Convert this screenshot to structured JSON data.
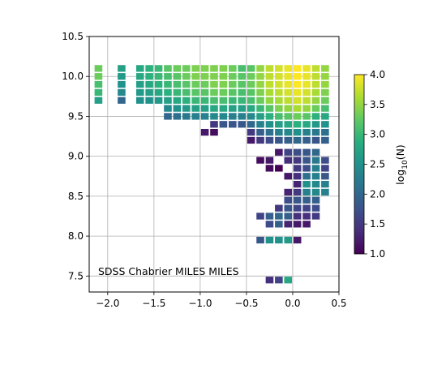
{
  "chart_data": {
    "type": "heatmap",
    "annotation": "SDSS Chabrier MILES MILES",
    "xlim": [
      -2.2,
      0.5
    ],
    "ylim": [
      7.3,
      10.5
    ],
    "xticks": [
      -2.0,
      -1.5,
      -1.0,
      -0.5,
      0.0,
      0.5
    ],
    "xtick_labels": [
      "−2.0",
      "−1.5",
      "−1.0",
      "−0.5",
      "0.0",
      "0.5"
    ],
    "yticks": [
      7.5,
      8.0,
      8.5,
      9.0,
      9.5,
      10.0,
      10.5
    ],
    "ytick_labels": [
      "7.5",
      "8.0",
      "8.5",
      "9.0",
      "9.5",
      "10.0",
      "10.5"
    ],
    "grid": true,
    "cell_width": 0.1,
    "cell_height": 0.1,
    "colorbar": {
      "label_main": "log",
      "label_sub": "10",
      "label_rest": "(N)",
      "range": [
        1.0,
        4.0
      ],
      "ticks": [
        "1.0",
        "1.5",
        "2.0",
        "2.5",
        "3.0",
        "3.5",
        "4.0"
      ],
      "colormap": "viridis"
    },
    "cells": [
      [
        -2.1,
        10.1,
        3.3
      ],
      [
        -2.1,
        10.0,
        3.3
      ],
      [
        -2.1,
        9.9,
        3.1
      ],
      [
        -2.1,
        9.8,
        3.0
      ],
      [
        -2.1,
        9.7,
        2.7
      ],
      [
        -1.85,
        10.1,
        2.7
      ],
      [
        -1.85,
        10.0,
        2.6
      ],
      [
        -1.85,
        9.9,
        2.5
      ],
      [
        -1.85,
        9.8,
        2.4
      ],
      [
        -1.85,
        9.7,
        2.0
      ],
      [
        -1.65,
        10.1,
        2.8
      ],
      [
        -1.65,
        10.0,
        2.8
      ],
      [
        -1.65,
        9.9,
        2.7
      ],
      [
        -1.65,
        9.8,
        2.6
      ],
      [
        -1.65,
        9.7,
        2.5
      ],
      [
        -1.55,
        10.1,
        2.9
      ],
      [
        -1.55,
        10.0,
        2.9
      ],
      [
        -1.55,
        9.9,
        2.8
      ],
      [
        -1.55,
        9.8,
        2.7
      ],
      [
        -1.55,
        9.7,
        2.5
      ],
      [
        -1.45,
        10.1,
        3.0
      ],
      [
        -1.45,
        10.0,
        3.0
      ],
      [
        -1.45,
        9.9,
        2.9
      ],
      [
        -1.45,
        9.8,
        2.8
      ],
      [
        -1.45,
        9.7,
        2.6
      ],
      [
        -1.35,
        10.1,
        3.2
      ],
      [
        -1.35,
        10.0,
        3.1
      ],
      [
        -1.35,
        9.9,
        3.0
      ],
      [
        -1.35,
        9.8,
        2.9
      ],
      [
        -1.35,
        9.7,
        2.7
      ],
      [
        -1.35,
        9.6,
        2.4
      ],
      [
        -1.35,
        9.5,
        2.0
      ],
      [
        -1.25,
        10.1,
        3.3
      ],
      [
        -1.25,
        10.0,
        3.2
      ],
      [
        -1.25,
        9.9,
        3.1
      ],
      [
        -1.25,
        9.8,
        3.0
      ],
      [
        -1.25,
        9.7,
        2.8
      ],
      [
        -1.25,
        9.6,
        2.5
      ],
      [
        -1.25,
        9.5,
        2.1
      ],
      [
        -1.15,
        10.1,
        3.3
      ],
      [
        -1.15,
        10.0,
        3.3
      ],
      [
        -1.15,
        9.9,
        3.2
      ],
      [
        -1.15,
        9.8,
        3.1
      ],
      [
        -1.15,
        9.7,
        2.9
      ],
      [
        -1.15,
        9.6,
        2.6
      ],
      [
        -1.15,
        9.5,
        2.2
      ],
      [
        -1.05,
        10.1,
        3.4
      ],
      [
        -1.05,
        10.0,
        3.4
      ],
      [
        -1.05,
        9.9,
        3.3
      ],
      [
        -1.05,
        9.8,
        3.2
      ],
      [
        -1.05,
        9.7,
        3.0
      ],
      [
        -1.05,
        9.6,
        2.7
      ],
      [
        -1.05,
        9.5,
        2.3
      ],
      [
        -0.95,
        10.1,
        3.4
      ],
      [
        -0.95,
        10.0,
        3.4
      ],
      [
        -0.95,
        9.9,
        3.3
      ],
      [
        -0.95,
        9.8,
        3.2
      ],
      [
        -0.95,
        9.7,
        3.0
      ],
      [
        -0.95,
        9.6,
        2.7
      ],
      [
        -0.95,
        9.5,
        2.3
      ],
      [
        -0.95,
        9.3,
        1.2
      ],
      [
        -0.85,
        10.1,
        3.4
      ],
      [
        -0.85,
        10.0,
        3.4
      ],
      [
        -0.85,
        9.9,
        3.4
      ],
      [
        -0.85,
        9.8,
        3.3
      ],
      [
        -0.85,
        9.7,
        3.1
      ],
      [
        -0.85,
        9.6,
        2.8
      ],
      [
        -0.85,
        9.5,
        2.4
      ],
      [
        -0.85,
        9.4,
        1.5
      ],
      [
        -0.85,
        9.3,
        1.1
      ],
      [
        -0.75,
        10.1,
        3.4
      ],
      [
        -0.75,
        10.0,
        3.4
      ],
      [
        -0.75,
        9.9,
        3.4
      ],
      [
        -0.75,
        9.8,
        3.3
      ],
      [
        -0.75,
        9.7,
        3.1
      ],
      [
        -0.75,
        9.6,
        2.8
      ],
      [
        -0.75,
        9.5,
        2.4
      ],
      [
        -0.75,
        9.4,
        1.8
      ],
      [
        -0.65,
        10.1,
        3.3
      ],
      [
        -0.65,
        10.0,
        3.3
      ],
      [
        -0.65,
        9.9,
        3.3
      ],
      [
        -0.65,
        9.8,
        3.2
      ],
      [
        -0.65,
        9.7,
        3.0
      ],
      [
        -0.65,
        9.6,
        2.7
      ],
      [
        -0.65,
        9.5,
        2.3
      ],
      [
        -0.65,
        9.4,
        1.8
      ],
      [
        -0.55,
        10.1,
        3.1
      ],
      [
        -0.55,
        10.0,
        3.2
      ],
      [
        -0.55,
        9.9,
        3.2
      ],
      [
        -0.55,
        9.8,
        3.1
      ],
      [
        -0.55,
        9.7,
        3.0
      ],
      [
        -0.55,
        9.6,
        2.7
      ],
      [
        -0.55,
        9.5,
        2.3
      ],
      [
        -0.55,
        9.4,
        1.8
      ],
      [
        -0.45,
        10.1,
        3.2
      ],
      [
        -0.45,
        10.0,
        3.3
      ],
      [
        -0.45,
        9.9,
        3.3
      ],
      [
        -0.45,
        9.8,
        3.2
      ],
      [
        -0.45,
        9.7,
        3.1
      ],
      [
        -0.45,
        9.6,
        2.8
      ],
      [
        -0.45,
        9.5,
        2.4
      ],
      [
        -0.45,
        9.4,
        2.0
      ],
      [
        -0.45,
        9.3,
        1.5
      ],
      [
        -0.45,
        9.2,
        1.2
      ],
      [
        -0.35,
        10.1,
        3.5
      ],
      [
        -0.35,
        10.0,
        3.5
      ],
      [
        -0.35,
        9.9,
        3.5
      ],
      [
        -0.35,
        9.8,
        3.4
      ],
      [
        -0.35,
        9.7,
        3.3
      ],
      [
        -0.35,
        9.6,
        3.0
      ],
      [
        -0.35,
        9.5,
        2.7
      ],
      [
        -0.35,
        9.4,
        2.3
      ],
      [
        -0.35,
        9.3,
        1.9
      ],
      [
        -0.35,
        9.2,
        1.5
      ],
      [
        -0.35,
        8.95,
        1.1
      ],
      [
        -0.35,
        8.25,
        1.6
      ],
      [
        -0.35,
        7.95,
        1.8
      ],
      [
        -0.25,
        10.1,
        3.7
      ],
      [
        -0.25,
        10.0,
        3.7
      ],
      [
        -0.25,
        9.9,
        3.7
      ],
      [
        -0.25,
        9.8,
        3.6
      ],
      [
        -0.25,
        9.7,
        3.5
      ],
      [
        -0.25,
        9.6,
        3.2
      ],
      [
        -0.25,
        9.5,
        2.9
      ],
      [
        -0.25,
        9.4,
        2.5
      ],
      [
        -0.25,
        9.3,
        2.1
      ],
      [
        -0.25,
        9.2,
        1.7
      ],
      [
        -0.25,
        8.95,
        1.2
      ],
      [
        -0.25,
        8.85,
        1.1
      ],
      [
        -0.25,
        8.25,
        1.9
      ],
      [
        -0.25,
        8.15,
        1.7
      ],
      [
        -0.25,
        7.95,
        2.5
      ],
      [
        -0.25,
        7.45,
        1.4
      ],
      [
        -0.15,
        10.1,
        3.8
      ],
      [
        -0.15,
        10.0,
        3.8
      ],
      [
        -0.15,
        9.9,
        3.8
      ],
      [
        -0.15,
        9.8,
        3.7
      ],
      [
        -0.15,
        9.7,
        3.6
      ],
      [
        -0.15,
        9.6,
        3.4
      ],
      [
        -0.15,
        9.5,
        3.1
      ],
      [
        -0.15,
        9.4,
        2.7
      ],
      [
        -0.15,
        9.3,
        2.3
      ],
      [
        -0.15,
        9.2,
        1.8
      ],
      [
        -0.15,
        9.05,
        1.2
      ],
      [
        -0.15,
        8.85,
        1.0
      ],
      [
        -0.15,
        8.35,
        1.5
      ],
      [
        -0.15,
        8.25,
        2.0
      ],
      [
        -0.15,
        8.15,
        1.9
      ],
      [
        -0.15,
        7.95,
        2.5
      ],
      [
        -0.15,
        7.45,
        1.6
      ],
      [
        -0.05,
        10.1,
        3.9
      ],
      [
        -0.05,
        10.0,
        3.9
      ],
      [
        -0.05,
        9.9,
        3.9
      ],
      [
        -0.05,
        9.8,
        3.8
      ],
      [
        -0.05,
        9.7,
        3.7
      ],
      [
        -0.05,
        9.6,
        3.5
      ],
      [
        -0.05,
        9.5,
        3.2
      ],
      [
        -0.05,
        9.4,
        2.8
      ],
      [
        -0.05,
        9.3,
        2.4
      ],
      [
        -0.05,
        9.2,
        1.9
      ],
      [
        -0.05,
        9.05,
        1.6
      ],
      [
        -0.05,
        8.95,
        1.4
      ],
      [
        -0.05,
        8.75,
        1.2
      ],
      [
        -0.05,
        8.55,
        1.3
      ],
      [
        -0.05,
        8.45,
        1.7
      ],
      [
        -0.05,
        8.35,
        1.8
      ],
      [
        -0.05,
        8.25,
        1.9
      ],
      [
        -0.05,
        8.15,
        1.3
      ],
      [
        -0.05,
        7.95,
        2.6
      ],
      [
        -0.05,
        7.45,
        2.8
      ],
      [
        0.05,
        10.1,
        4.0
      ],
      [
        0.05,
        10.0,
        4.0
      ],
      [
        0.05,
        9.9,
        4.0
      ],
      [
        0.05,
        9.8,
        3.9
      ],
      [
        0.05,
        9.7,
        3.8
      ],
      [
        0.05,
        9.6,
        3.6
      ],
      [
        0.05,
        9.5,
        3.3
      ],
      [
        0.05,
        9.4,
        2.9
      ],
      [
        0.05,
        9.3,
        2.5
      ],
      [
        0.05,
        9.2,
        2.0
      ],
      [
        0.05,
        9.05,
        1.7
      ],
      [
        0.05,
        8.95,
        1.5
      ],
      [
        0.05,
        8.85,
        1.5
      ],
      [
        0.05,
        8.75,
        1.4
      ],
      [
        0.05,
        8.65,
        1.3
      ],
      [
        0.05,
        8.55,
        1.5
      ],
      [
        0.05,
        8.45,
        1.8
      ],
      [
        0.05,
        8.35,
        1.6
      ],
      [
        0.05,
        8.25,
        1.4
      ],
      [
        0.05,
        8.15,
        1.2
      ],
      [
        0.05,
        7.95,
        1.2
      ],
      [
        0.15,
        10.1,
        3.9
      ],
      [
        0.15,
        10.0,
        3.9
      ],
      [
        0.15,
        9.9,
        3.9
      ],
      [
        0.15,
        9.8,
        3.8
      ],
      [
        0.15,
        9.7,
        3.7
      ],
      [
        0.15,
        9.6,
        3.5
      ],
      [
        0.15,
        9.5,
        3.2
      ],
      [
        0.15,
        9.4,
        2.8
      ],
      [
        0.15,
        9.3,
        2.3
      ],
      [
        0.15,
        9.2,
        1.9
      ],
      [
        0.15,
        9.05,
        1.8
      ],
      [
        0.15,
        8.95,
        1.8
      ],
      [
        0.15,
        8.85,
        1.7
      ],
      [
        0.15,
        8.75,
        2.1
      ],
      [
        0.15,
        8.65,
        2.5
      ],
      [
        0.15,
        8.55,
        2.3
      ],
      [
        0.15,
        8.45,
        1.9
      ],
      [
        0.15,
        8.35,
        1.6
      ],
      [
        0.15,
        8.25,
        1.4
      ],
      [
        0.15,
        8.15,
        1.2
      ],
      [
        0.25,
        10.1,
        3.7
      ],
      [
        0.25,
        10.0,
        3.7
      ],
      [
        0.25,
        9.9,
        3.7
      ],
      [
        0.25,
        9.8,
        3.6
      ],
      [
        0.25,
        9.7,
        3.5
      ],
      [
        0.25,
        9.6,
        3.3
      ],
      [
        0.25,
        9.5,
        2.9
      ],
      [
        0.25,
        9.4,
        2.6
      ],
      [
        0.25,
        9.3,
        2.2
      ],
      [
        0.25,
        9.2,
        1.8
      ],
      [
        0.25,
        9.05,
        2.0
      ],
      [
        0.25,
        8.95,
        2.2
      ],
      [
        0.25,
        8.85,
        2.3
      ],
      [
        0.25,
        8.75,
        2.3
      ],
      [
        0.25,
        8.65,
        2.4
      ],
      [
        0.25,
        8.55,
        2.4
      ],
      [
        0.25,
        8.45,
        1.9
      ],
      [
        0.25,
        8.35,
        1.7
      ],
      [
        0.25,
        8.25,
        1.5
      ],
      [
        0.35,
        10.1,
        3.5
      ],
      [
        0.35,
        10.0,
        3.5
      ],
      [
        0.35,
        9.9,
        3.5
      ],
      [
        0.35,
        9.8,
        3.4
      ],
      [
        0.35,
        9.7,
        3.3
      ],
      [
        0.35,
        9.6,
        3.1
      ],
      [
        0.35,
        9.5,
        2.8
      ],
      [
        0.35,
        9.4,
        2.5
      ],
      [
        0.35,
        9.3,
        2.1
      ],
      [
        0.35,
        9.2,
        1.9
      ],
      [
        0.35,
        8.95,
        1.7
      ],
      [
        0.35,
        8.85,
        1.6
      ],
      [
        0.35,
        8.75,
        1.8
      ],
      [
        0.35,
        8.65,
        2.3
      ],
      [
        0.35,
        8.55,
        2.3
      ]
    ]
  }
}
